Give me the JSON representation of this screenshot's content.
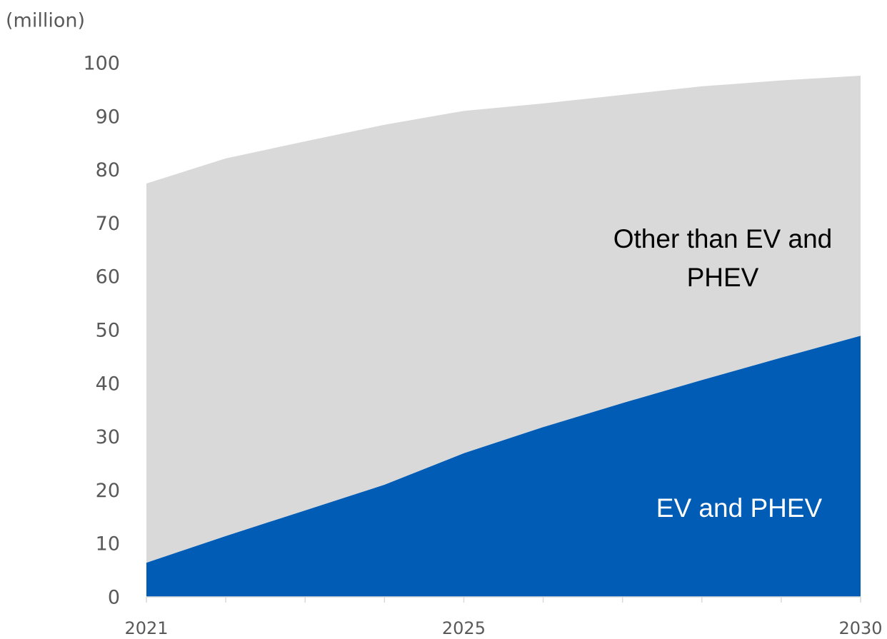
{
  "chart_data": {
    "type": "stacked_area",
    "y_label": "(million)",
    "categories": [
      "2021",
      null,
      null,
      null,
      "2025",
      null,
      null,
      null,
      null,
      "2030"
    ],
    "series": [
      {
        "name": "EV and PHEV",
        "color": "#005cb4",
        "values": [
          6.4,
          11.4,
          16.2,
          21.0,
          26.9,
          31.8,
          36.3,
          40.6,
          44.8,
          48.9
        ]
      },
      {
        "name": "Other than EV and PHEV",
        "color": "#d9d9d9",
        "values": [
          71.0,
          70.7,
          69.1,
          67.4,
          64.1,
          60.6,
          57.7,
          55.0,
          51.9,
          48.7
        ]
      }
    ],
    "ylim": [
      0,
      100
    ],
    "yticks": [
      0,
      10,
      20,
      30,
      40,
      50,
      60,
      70,
      80,
      90,
      100
    ],
    "grid": false
  }
}
